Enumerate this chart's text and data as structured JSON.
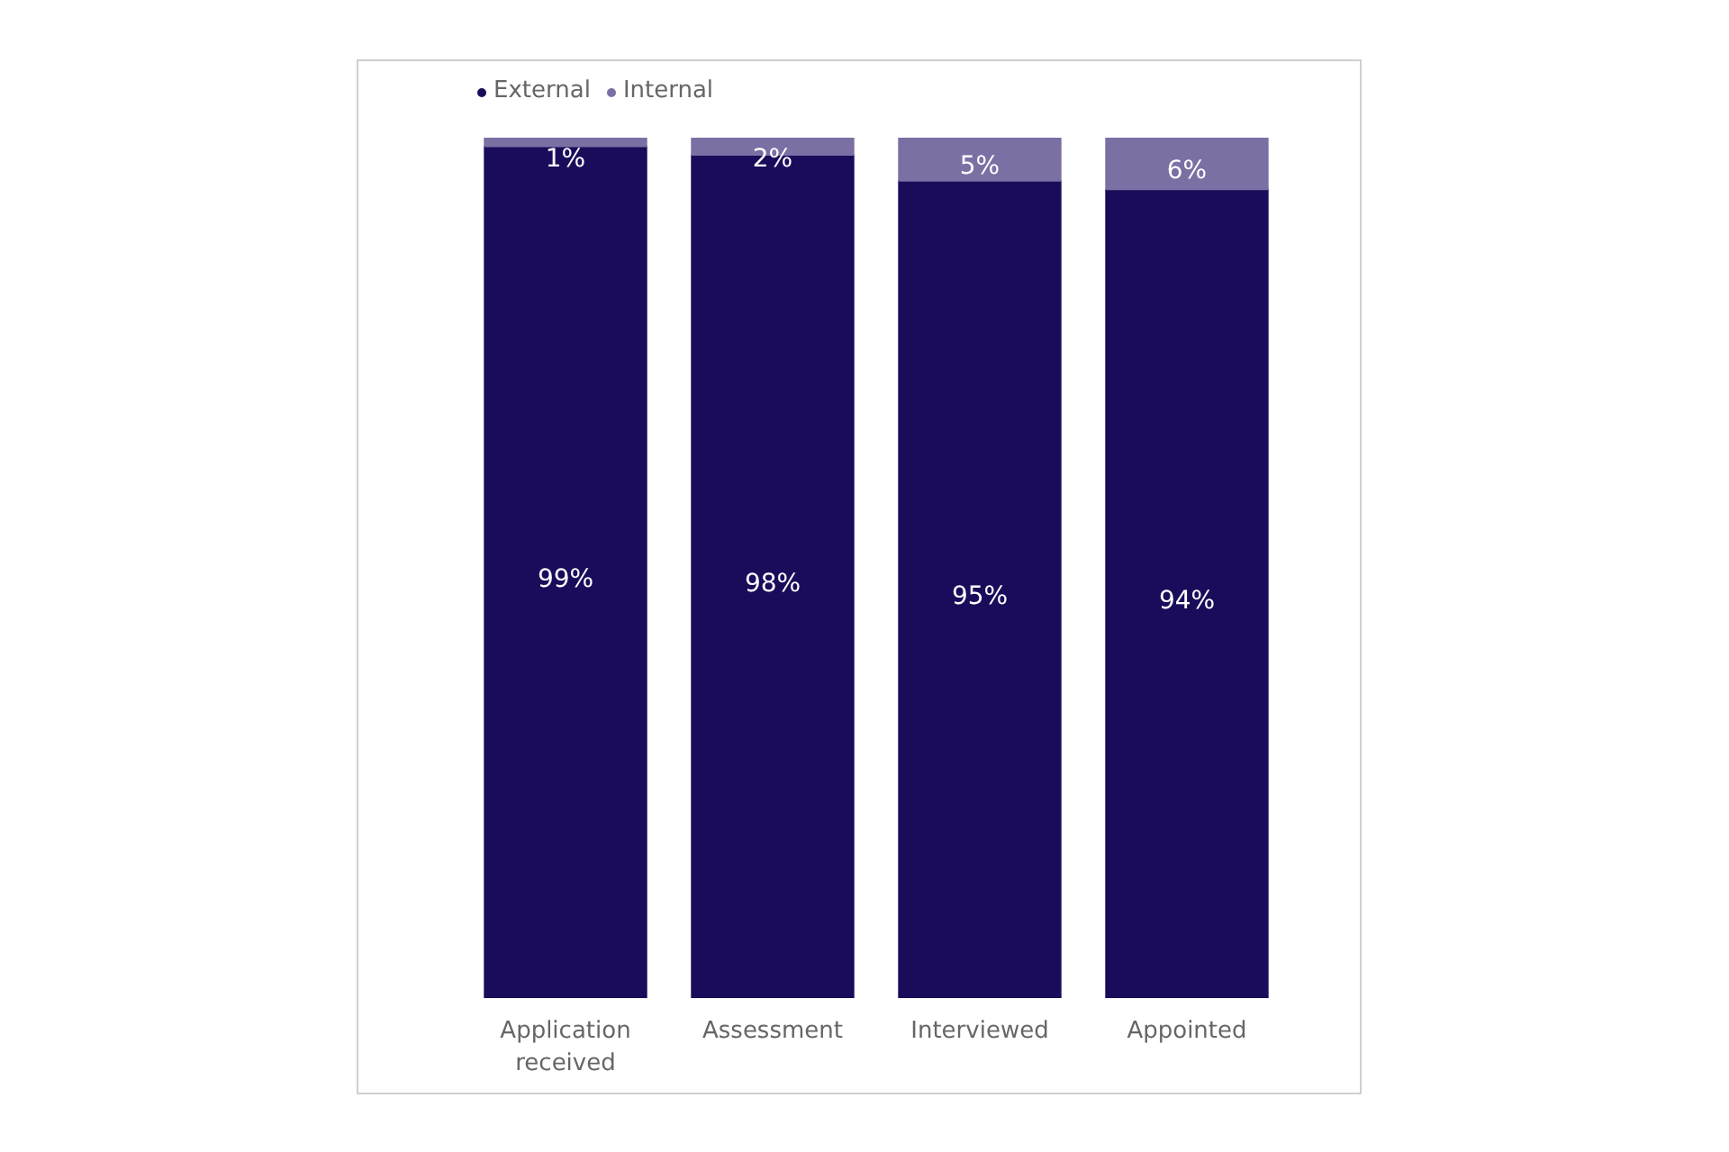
{
  "chart_data": {
    "type": "bar",
    "stacked": true,
    "legend": "top left",
    "grid": false,
    "tick_labels": "x",
    "categories": [
      "Application received",
      "Assessment",
      "Interviewed",
      "Appointed"
    ],
    "ylim": [
      0,
      100
    ],
    "series": [
      {
        "name": "External",
        "color": "#1a0c5a",
        "values": [
          99,
          98,
          95,
          94
        ],
        "value_labels": [
          "99%",
          "98%",
          "95%",
          "94%"
        ]
      },
      {
        "name": "Internal",
        "color": "#7b6fa3",
        "values": [
          1,
          2,
          5,
          6
        ],
        "value_labels": [
          "1%",
          "2%",
          "5%",
          "6%"
        ]
      }
    ]
  }
}
